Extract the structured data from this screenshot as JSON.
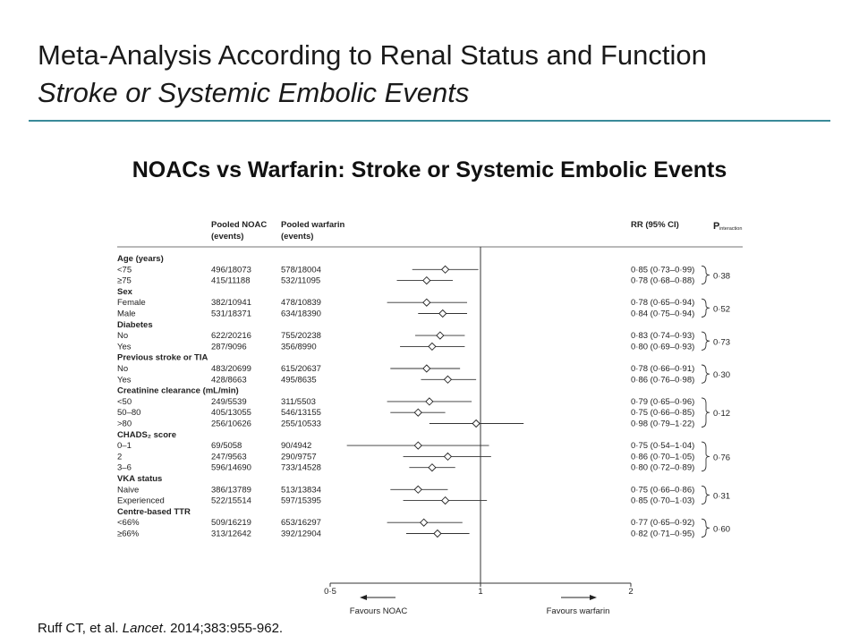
{
  "slide": {
    "title": "Meta-Analysis According to Renal Status and Function",
    "subtitle_italic": "Stroke or Systemic Embolic Events",
    "figure_title": "NOACs vs Warfarin: Stroke or Systemic Embolic Events",
    "citation_pre": "Ruff CT, et al. ",
    "citation_journal": "Lancet",
    "citation_post": ". 2014;383:955-962."
  },
  "chart_data": {
    "type": "forest",
    "headers": {
      "noac": [
        "Pooled NOAC",
        "(events)"
      ],
      "warfarin": [
        "Pooled warfarin",
        "(events)"
      ],
      "rr": "RR (95% CI)",
      "p_main": "P",
      "p_sub": "interaction"
    },
    "x_ticks": [
      "0·5",
      "1",
      "2"
    ],
    "x_scale": "log",
    "xlim": [
      0.5,
      2
    ],
    "reference_line": 1,
    "favours_left": "Favours NOAC",
    "favours_right": "Favours warfarin",
    "groups": [
      {
        "label": "Age (years)",
        "p": "0·38",
        "rows": [
          {
            "label": "<75",
            "noac": "496/18073",
            "warfarin": "578/18004",
            "rr": "0·85 (0·73–0·99)",
            "est": 0.85,
            "lo": 0.73,
            "hi": 0.99
          },
          {
            "label": "≥75",
            "noac": "415/11188",
            "warfarin": "532/11095",
            "rr": "0·78 (0·68–0·88)",
            "est": 0.78,
            "lo": 0.68,
            "hi": 0.88
          }
        ]
      },
      {
        "label": "Sex",
        "p": "0·52",
        "rows": [
          {
            "label": "Female",
            "noac": "382/10941",
            "warfarin": "478/10839",
            "rr": "0·78 (0·65–0·94)",
            "est": 0.78,
            "lo": 0.65,
            "hi": 0.94
          },
          {
            "label": "Male",
            "noac": "531/18371",
            "warfarin": "634/18390",
            "rr": "0·84 (0·75–0·94)",
            "est": 0.84,
            "lo": 0.75,
            "hi": 0.94
          }
        ]
      },
      {
        "label": "Diabetes",
        "p": "0·73",
        "rows": [
          {
            "label": "No",
            "noac": "622/20216",
            "warfarin": "755/20238",
            "rr": "0·83 (0·74–0·93)",
            "est": 0.83,
            "lo": 0.74,
            "hi": 0.93
          },
          {
            "label": "Yes",
            "noac": "287/9096",
            "warfarin": "356/8990",
            "rr": "0·80 (0·69–0·93)",
            "est": 0.8,
            "lo": 0.69,
            "hi": 0.93
          }
        ]
      },
      {
        "label": "Previous stroke or TIA",
        "p": "0·30",
        "rows": [
          {
            "label": "No",
            "noac": "483/20699",
            "warfarin": "615/20637",
            "rr": "0·78 (0·66–0·91)",
            "est": 0.78,
            "lo": 0.66,
            "hi": 0.91
          },
          {
            "label": "Yes",
            "noac": "428/8663",
            "warfarin": "495/8635",
            "rr": "0·86 (0·76–0·98)",
            "est": 0.86,
            "lo": 0.76,
            "hi": 0.98
          }
        ]
      },
      {
        "label": "Creatinine clearance (mL/min)",
        "p": "0·12",
        "rows": [
          {
            "label": "<50",
            "noac": "249/5539",
            "warfarin": "311/5503",
            "rr": "0·79 (0·65–0·96)",
            "est": 0.79,
            "lo": 0.65,
            "hi": 0.96
          },
          {
            "label": "50–80",
            "noac": "405/13055",
            "warfarin": "546/13155",
            "rr": "0·75 (0·66–0·85)",
            "est": 0.75,
            "lo": 0.66,
            "hi": 0.85
          },
          {
            "label": ">80",
            "noac": "256/10626",
            "warfarin": "255/10533",
            "rr": "0·98 (0·79–1·22)",
            "est": 0.98,
            "lo": 0.79,
            "hi": 1.22
          }
        ]
      },
      {
        "label": "CHADS₂ score",
        "p": "0·76",
        "rows": [
          {
            "label": "0–1",
            "noac": "69/5058",
            "warfarin": "90/4942",
            "rr": "0·75 (0·54–1·04)",
            "est": 0.75,
            "lo": 0.54,
            "hi": 1.04
          },
          {
            "label": "2",
            "noac": "247/9563",
            "warfarin": "290/9757",
            "rr": "0·86 (0·70–1·05)",
            "est": 0.86,
            "lo": 0.7,
            "hi": 1.05
          },
          {
            "label": "3–6",
            "noac": "596/14690",
            "warfarin": "733/14528",
            "rr": "0·80 (0·72–0·89)",
            "est": 0.8,
            "lo": 0.72,
            "hi": 0.89
          }
        ]
      },
      {
        "label": "VKA status",
        "p": "0·31",
        "rows": [
          {
            "label": "Naive",
            "noac": "386/13789",
            "warfarin": "513/13834",
            "rr": "0·75 (0·66–0·86)",
            "est": 0.75,
            "lo": 0.66,
            "hi": 0.86
          },
          {
            "label": "Experienced",
            "noac": "522/15514",
            "warfarin": "597/15395",
            "rr": "0·85 (0·70–1·03)",
            "est": 0.85,
            "lo": 0.7,
            "hi": 1.03
          }
        ]
      },
      {
        "label": "Centre-based TTR",
        "p": "0·60",
        "rows": [
          {
            "label": "<66%",
            "noac": "509/16219",
            "warfarin": "653/16297",
            "rr": "0·77 (0·65–0·92)",
            "est": 0.77,
            "lo": 0.65,
            "hi": 0.92
          },
          {
            "label": "≥66%",
            "noac": "313/12642",
            "warfarin": "392/12904",
            "rr": "0·82 (0·71–0·95)",
            "est": 0.82,
            "lo": 0.71,
            "hi": 0.95
          }
        ]
      }
    ]
  }
}
